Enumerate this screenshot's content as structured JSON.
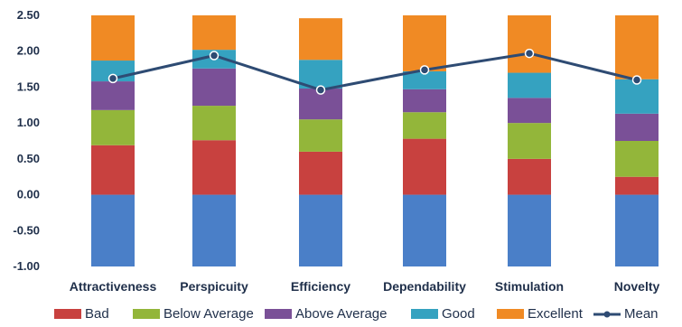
{
  "chart_data": {
    "type": "bar",
    "stacked": true,
    "categories": [
      "Attractiveness",
      "Perspicuity",
      "Efficiency",
      "Dependability",
      "Stimulation",
      "Novelty"
    ],
    "ylim": [
      -1.0,
      2.5
    ],
    "yticks": [
      "2.50",
      "2.00",
      "1.50",
      "1.00",
      "0.50",
      "0.00",
      "-0.50",
      "-1.00"
    ],
    "grid": false,
    "legend_position": "bottom",
    "baseline_band": {
      "range": [
        -1.0,
        0.0
      ],
      "color": "#4a7fc8"
    },
    "series": [
      {
        "name": "Bad",
        "color": "#c8413f",
        "values": [
          0.69,
          0.76,
          0.6,
          0.78,
          0.5,
          0.25
        ]
      },
      {
        "name": "Below Average",
        "color": "#93b63a",
        "values": [
          0.49,
          0.48,
          0.45,
          0.37,
          0.5,
          0.5
        ]
      },
      {
        "name": "Above Average",
        "color": "#7a5097",
        "values": [
          0.4,
          0.52,
          0.43,
          0.32,
          0.35,
          0.38
        ]
      },
      {
        "name": "Good",
        "color": "#35a2c0",
        "values": [
          0.29,
          0.26,
          0.4,
          0.25,
          0.35,
          0.48
        ]
      },
      {
        "name": "Excellent",
        "color": "#f08a24",
        "values": [
          0.63,
          0.48,
          0.58,
          0.78,
          0.8,
          0.89
        ]
      }
    ],
    "line": {
      "name": "Mean",
      "color": "#2e4b73",
      "values": [
        1.62,
        1.94,
        1.46,
        1.74,
        1.97,
        1.6
      ]
    }
  }
}
